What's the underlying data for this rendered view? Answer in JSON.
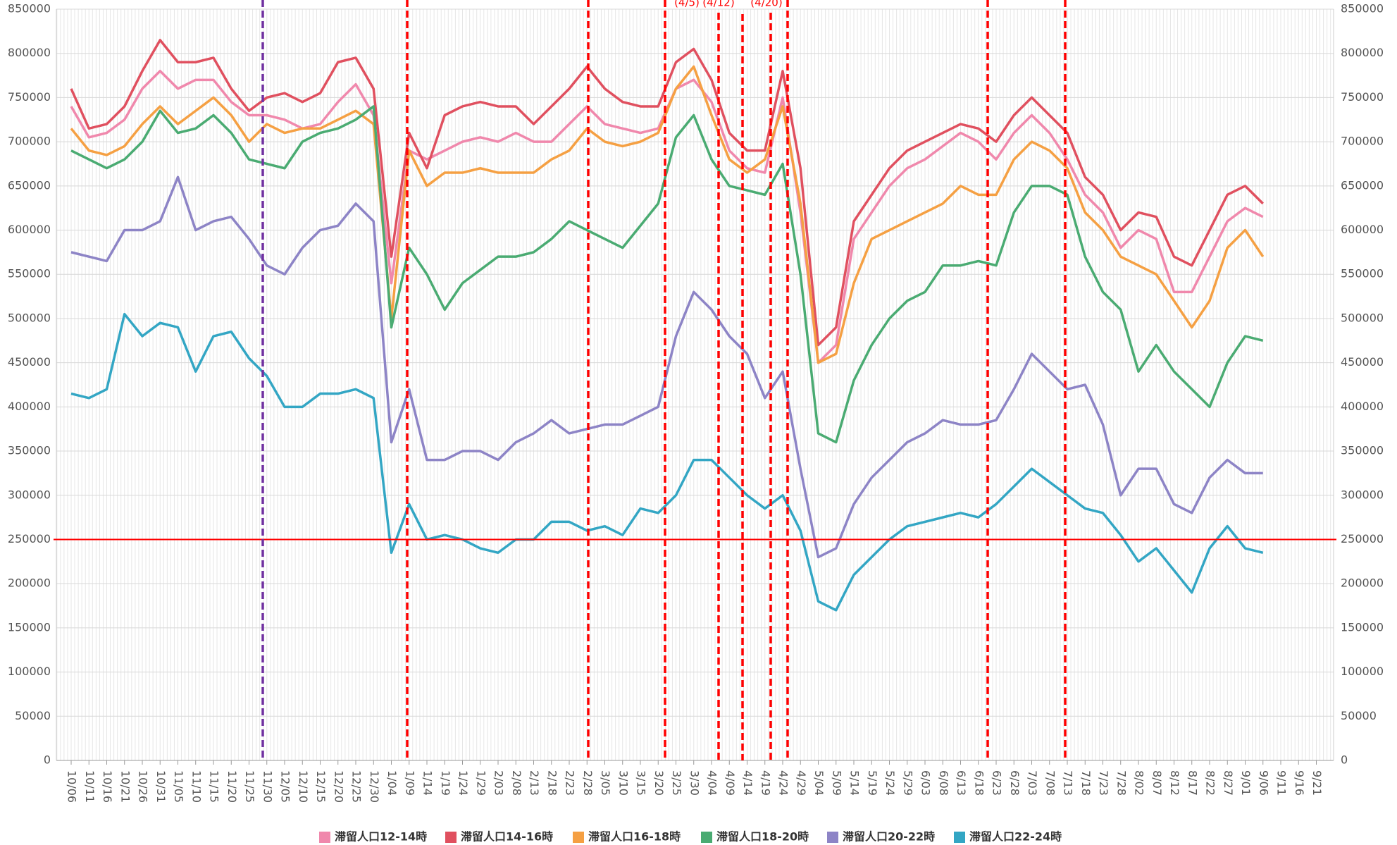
{
  "chart_data": {
    "type": "line",
    "annotations": [
      "(4/5)",
      "(4/12)",
      "(4/20)"
    ],
    "categories": [
      "10/06",
      "10/11",
      "10/16",
      "10/21",
      "10/26",
      "10/31",
      "11/05",
      "11/10",
      "11/15",
      "11/20",
      "11/25",
      "11/30",
      "12/05",
      "12/10",
      "12/15",
      "12/20",
      "12/25",
      "12/30",
      "1/04",
      "1/09",
      "1/14",
      "1/19",
      "1/24",
      "1/29",
      "2/03",
      "2/08",
      "2/13",
      "2/18",
      "2/23",
      "2/28",
      "3/05",
      "3/10",
      "3/15",
      "3/20",
      "3/25",
      "3/30",
      "4/04",
      "4/09",
      "4/14",
      "4/19",
      "4/24",
      "4/29",
      "5/04",
      "5/09",
      "5/14",
      "5/19",
      "5/24",
      "5/29",
      "6/03",
      "6/08",
      "6/13",
      "6/18",
      "6/23",
      "6/28",
      "7/03",
      "7/08",
      "7/13",
      "7/18",
      "7/23",
      "7/28",
      "8/02",
      "8/07",
      "8/12",
      "8/17",
      "8/22",
      "8/27",
      "9/01",
      "9/06",
      "9/11",
      "9/16",
      "9/21"
    ],
    "series": [
      {
        "name": "滞留人口12-14時",
        "color": "#f088ac",
        "values": [
          740000,
          705000,
          710000,
          725000,
          760000,
          780000,
          760000,
          770000,
          770000,
          745000,
          730000,
          730000,
          725000,
          715000,
          720000,
          745000,
          765000,
          730000,
          540000,
          690000,
          680000,
          690000,
          700000,
          705000,
          700000,
          710000,
          700000,
          700000,
          720000,
          740000,
          720000,
          715000,
          710000,
          715000,
          760000,
          770000,
          745000,
          690000,
          670000,
          665000,
          750000,
          620000,
          450000,
          470000,
          590000,
          620000,
          650000,
          670000,
          680000,
          695000,
          710000,
          700000,
          680000,
          710000,
          730000,
          710000,
          680000,
          640000,
          620000,
          580000,
          600000,
          590000,
          530000,
          530000,
          570000,
          610000,
          625000,
          615000,
          null,
          null,
          null
        ]
      },
      {
        "name": "滞留人口14-16時",
        "color": "#e0505f",
        "values": [
          760000,
          715000,
          720000,
          740000,
          780000,
          815000,
          790000,
          790000,
          795000,
          760000,
          735000,
          750000,
          755000,
          745000,
          755000,
          790000,
          795000,
          760000,
          570000,
          710000,
          670000,
          730000,
          740000,
          745000,
          740000,
          740000,
          720000,
          740000,
          760000,
          785000,
          760000,
          745000,
          740000,
          740000,
          790000,
          805000,
          770000,
          710000,
          690000,
          690000,
          780000,
          670000,
          470000,
          490000,
          610000,
          640000,
          670000,
          690000,
          700000,
          710000,
          720000,
          715000,
          700000,
          730000,
          750000,
          730000,
          710000,
          660000,
          640000,
          600000,
          620000,
          615000,
          570000,
          560000,
          600000,
          640000,
          650000,
          630000,
          null,
          null,
          null
        ]
      },
      {
        "name": "滞留人口16-18時",
        "color": "#f5a043",
        "values": [
          715000,
          690000,
          685000,
          695000,
          720000,
          740000,
          720000,
          735000,
          750000,
          730000,
          700000,
          720000,
          710000,
          715000,
          715000,
          725000,
          735000,
          720000,
          500000,
          690000,
          650000,
          665000,
          665000,
          670000,
          665000,
          665000,
          665000,
          680000,
          690000,
          715000,
          700000,
          695000,
          700000,
          710000,
          760000,
          785000,
          730000,
          680000,
          665000,
          680000,
          740000,
          630000,
          450000,
          460000,
          540000,
          590000,
          600000,
          610000,
          620000,
          630000,
          650000,
          640000,
          640000,
          680000,
          700000,
          690000,
          670000,
          620000,
          600000,
          570000,
          560000,
          550000,
          520000,
          490000,
          520000,
          580000,
          600000,
          570000,
          null,
          null,
          null
        ]
      },
      {
        "name": "滞留人口18-20時",
        "color": "#4aab72",
        "values": [
          690000,
          680000,
          670000,
          680000,
          700000,
          735000,
          710000,
          715000,
          730000,
          710000,
          680000,
          675000,
          670000,
          700000,
          710000,
          715000,
          725000,
          740000,
          490000,
          580000,
          550000,
          510000,
          540000,
          555000,
          570000,
          570000,
          575000,
          590000,
          610000,
          600000,
          590000,
          580000,
          605000,
          630000,
          705000,
          730000,
          680000,
          650000,
          645000,
          640000,
          675000,
          550000,
          370000,
          360000,
          430000,
          470000,
          500000,
          520000,
          530000,
          560000,
          560000,
          565000,
          560000,
          620000,
          650000,
          650000,
          640000,
          570000,
          530000,
          510000,
          440000,
          470000,
          440000,
          420000,
          400000,
          450000,
          480000,
          475000,
          null,
          null,
          null
        ]
      },
      {
        "name": "滞留人口20-22時",
        "color": "#8d84c6",
        "values": [
          575000,
          570000,
          565000,
          600000,
          600000,
          610000,
          660000,
          600000,
          610000,
          615000,
          590000,
          560000,
          550000,
          580000,
          600000,
          605000,
          630000,
          610000,
          360000,
          420000,
          340000,
          340000,
          350000,
          350000,
          340000,
          360000,
          370000,
          385000,
          370000,
          375000,
          380000,
          380000,
          390000,
          400000,
          480000,
          530000,
          510000,
          480000,
          460000,
          410000,
          440000,
          330000,
          230000,
          240000,
          290000,
          320000,
          340000,
          360000,
          370000,
          385000,
          380000,
          380000,
          385000,
          420000,
          460000,
          440000,
          420000,
          425000,
          380000,
          300000,
          330000,
          330000,
          290000,
          280000,
          320000,
          340000,
          325000,
          325000,
          null,
          null,
          null
        ]
      },
      {
        "name": "滞留人口22-24時",
        "color": "#33a6c4",
        "values": [
          415000,
          410000,
          420000,
          505000,
          480000,
          495000,
          490000,
          440000,
          480000,
          485000,
          455000,
          435000,
          400000,
          400000,
          415000,
          415000,
          420000,
          410000,
          235000,
          290000,
          250000,
          255000,
          250000,
          240000,
          235000,
          250000,
          250000,
          270000,
          270000,
          260000,
          265000,
          255000,
          285000,
          280000,
          300000,
          340000,
          340000,
          320000,
          300000,
          285000,
          300000,
          260000,
          180000,
          170000,
          210000,
          230000,
          250000,
          265000,
          270000,
          275000,
          280000,
          275000,
          290000,
          310000,
          330000,
          315000,
          300000,
          285000,
          280000,
          255000,
          225000,
          240000,
          215000,
          190000,
          240000,
          265000,
          240000,
          235000,
          null,
          null,
          null
        ]
      }
    ],
    "ylim": [
      0,
      850000
    ],
    "yticks": [
      0,
      50000,
      100000,
      150000,
      200000,
      250000,
      300000,
      350000,
      400000,
      450000,
      500000,
      550000,
      600000,
      650000,
      700000,
      750000,
      800000,
      850000
    ],
    "hline": 250000,
    "hline_color": "#ff0000",
    "grid": true
  }
}
